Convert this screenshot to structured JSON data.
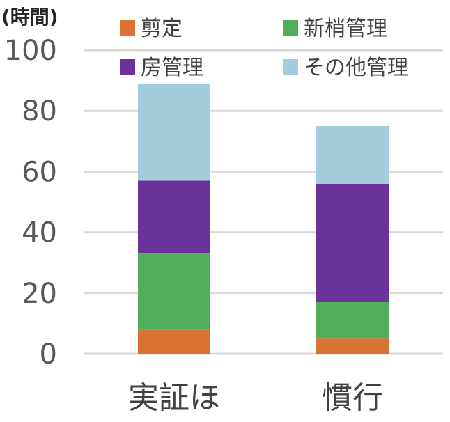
{
  "chart_data": {
    "type": "bar",
    "stacked": true,
    "unit_label": "(時間)",
    "categories": [
      "実証ほ",
      "慣行"
    ],
    "series": [
      {
        "name": "剪定",
        "color": "#d97333",
        "values": [
          8,
          5
        ]
      },
      {
        "name": "新梢管理",
        "color": "#4fad5b",
        "values": [
          25,
          12
        ]
      },
      {
        "name": "房管理",
        "color": "#6b3399",
        "values": [
          24,
          39
        ]
      },
      {
        "name": "その他管理",
        "color": "#a3cddc",
        "values": [
          32,
          19
        ]
      }
    ],
    "ylim": [
      0,
      100
    ],
    "yticks": [
      0,
      20,
      40,
      60,
      80,
      100
    ],
    "grid": true,
    "legend_position": "top"
  }
}
